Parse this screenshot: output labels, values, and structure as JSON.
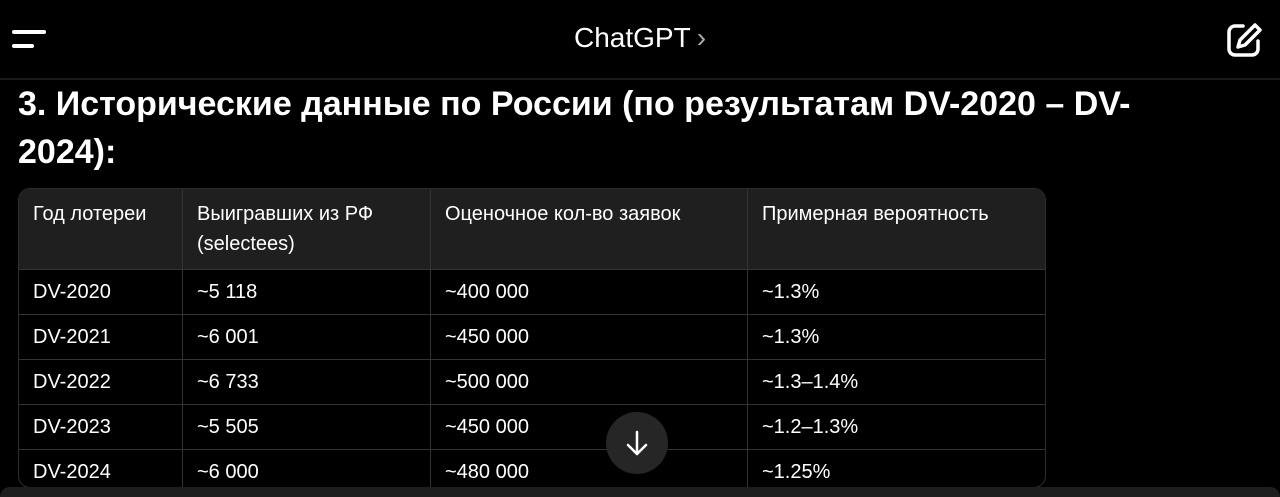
{
  "header": {
    "title": "ChatGPT",
    "chevron": "›",
    "menu_icon": "menu-icon",
    "new_chat_icon": "edit-icon"
  },
  "content": {
    "heading": "3. Исторические данные по России (по результатам DV-2020 – DV-2024):",
    "table": {
      "columns": [
        "Год лотереи",
        "Выигравших из РФ (selectees)",
        "Оценочное кол-во заявок",
        "Примерная вероятность"
      ],
      "rows": [
        [
          "DV-2020",
          "~5 118",
          "~400 000",
          "~1.3%"
        ],
        [
          "DV-2021",
          "~6 001",
          "~450 000",
          "~1.3%"
        ],
        [
          "DV-2022",
          "~6 733",
          "~500 000",
          "~1.3–1.4%"
        ],
        [
          "DV-2023",
          "~5 505",
          "~450 000",
          "~1.2–1.3%"
        ],
        [
          "DV-2024",
          "~6 000",
          "~480 000",
          "~1.25%"
        ]
      ]
    }
  },
  "scroll_button": {
    "icon": "arrow-down-icon"
  }
}
